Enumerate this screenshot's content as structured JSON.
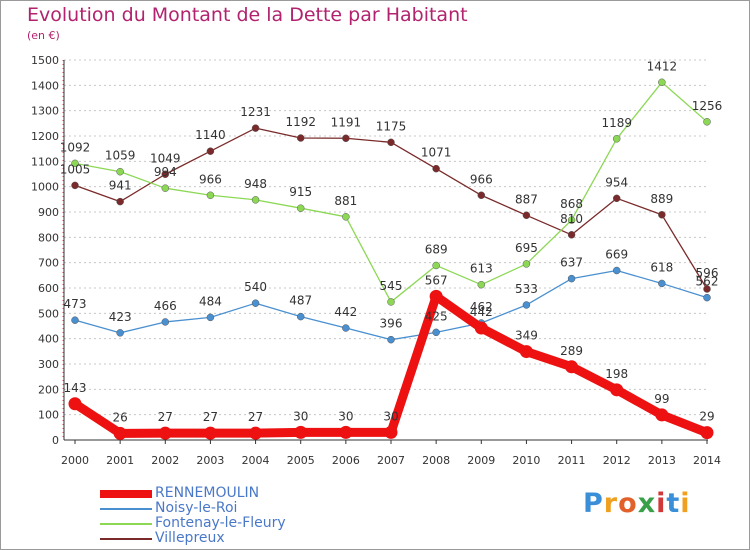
{
  "title": "Evolution du Montant de la Dette par Habitant",
  "subtitle": "(en €)",
  "logo": "Proxiti",
  "chart_data": {
    "type": "line",
    "title": "Evolution du Montant de la Dette par Habitant",
    "subtitle": "(en €)",
    "xlabel": "",
    "ylabel": "",
    "x": [
      "2000",
      "2001",
      "2002",
      "2003",
      "2004",
      "2005",
      "2006",
      "2007",
      "2008",
      "2009",
      "2010",
      "2011",
      "2012",
      "2013",
      "2014"
    ],
    "ylim": [
      0,
      1500
    ],
    "yticks": [
      0,
      100,
      200,
      300,
      400,
      500,
      600,
      700,
      800,
      900,
      1000,
      1100,
      1200,
      1300,
      1400,
      1500
    ],
    "grid": "horizontal dotted",
    "legend_position": "bottom-left",
    "series": [
      {
        "name": "RENNEMOULIN",
        "color": "#ee1111",
        "values": [
          143,
          26,
          27,
          27,
          27,
          30,
          30,
          30,
          567,
          442,
          349,
          289,
          198,
          99,
          29
        ]
      },
      {
        "name": "Noisy-le-Roi",
        "color": "#4a90d0",
        "values": [
          473,
          423,
          466,
          484,
          540,
          487,
          442,
          396,
          425,
          462,
          533,
          637,
          669,
          618,
          562
        ]
      },
      {
        "name": "Fontenay-le-Fleury",
        "color": "#8cd855",
        "values": [
          1092,
          1059,
          994,
          966,
          948,
          915,
          881,
          545,
          689,
          613,
          695,
          868,
          1189,
          1412,
          1256
        ]
      },
      {
        "name": "Villepreux",
        "color": "#7a2a2a",
        "values": [
          1005,
          941,
          1049,
          1140,
          1231,
          1192,
          1191,
          1175,
          1071,
          966,
          887,
          810,
          954,
          889,
          596
        ]
      }
    ]
  }
}
